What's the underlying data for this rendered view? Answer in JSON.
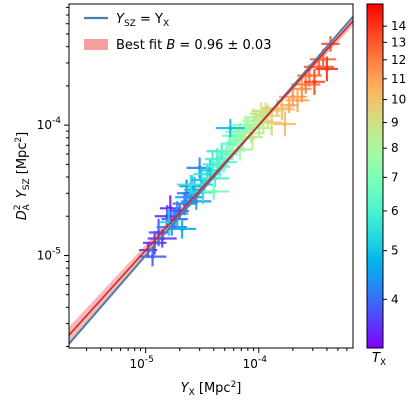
{
  "chart_data": {
    "type": "scatter",
    "xlabel": "Y_X [Mpc^2]",
    "ylabel": "D_A^2 Y_SZ [Mpc^2]",
    "xscale": "log",
    "yscale": "log",
    "xlim": [
      2.1e-06,
      0.00068
    ],
    "ylim": [
      1.95e-06,
      0.00085
    ],
    "x_ticks": [
      {
        "value": 1e-05,
        "label": "10^-5"
      },
      {
        "value": 0.0001,
        "label": "10^-4"
      }
    ],
    "y_ticks": [
      {
        "value": 1e-05,
        "label": "10^-5"
      },
      {
        "value": 0.0001,
        "label": "10^-4"
      }
    ],
    "grid": false,
    "legend_position": "top-left",
    "legend": [
      {
        "label_main": "Y",
        "label_sub1": "SZ",
        "label_mid": " = Y",
        "label_sub2": "X",
        "color": "#4a7fb0",
        "kind": "line"
      },
      {
        "label_text": "Best fit ",
        "label_italic": "B",
        "label_value": " = 0.96 ± 0.03",
        "color": "#f4a0a0",
        "kind": "band"
      }
    ],
    "relations": [
      {
        "name": "Y_SZ = Y_X",
        "slope": 1.0,
        "norm": 1.0,
        "color": "#4a7fb0"
      },
      {
        "name": "Best fit",
        "slope": 0.96,
        "norm": 1.0,
        "color": "#d62728",
        "band_color": "#f4a0a0"
      }
    ],
    "colorbar": {
      "label_main": "T",
      "label_sub": "X",
      "min": 3.2,
      "max": 15.5,
      "scale": "log",
      "colormap": "rainbow",
      "ticks": [
        4,
        5,
        6,
        7,
        8,
        9,
        10,
        11,
        12,
        13,
        14
      ]
    },
    "points": [
      {
        "x": 1.05e-05,
        "y": 1.1e-05,
        "t": 3.6
      },
      {
        "x": 1.15e-05,
        "y": 9.8e-06,
        "t": 3.9
      },
      {
        "x": 1.2e-05,
        "y": 1.25e-05,
        "t": 3.5
      },
      {
        "x": 1.3e-05,
        "y": 1.5e-05,
        "t": 3.7
      },
      {
        "x": 1.4e-05,
        "y": 1.35e-05,
        "t": 3.6
      },
      {
        "x": 1.55e-05,
        "y": 2e-05,
        "t": 3.5
      },
      {
        "x": 1.65e-05,
        "y": 2.3e-05,
        "t": 3.4
      },
      {
        "x": 1.7e-05,
        "y": 1.65e-05,
        "t": 4.2
      },
      {
        "x": 1.8e-05,
        "y": 1.9e-05,
        "t": 3.9
      },
      {
        "x": 1.9e-05,
        "y": 2.1e-05,
        "t": 4.4
      },
      {
        "x": 2e-05,
        "y": 2.2e-05,
        "t": 3.8
      },
      {
        "x": 2.1e-05,
        "y": 1.6e-05,
        "t": 4.7
      },
      {
        "x": 2.2e-05,
        "y": 2.5e-05,
        "t": 4.2
      },
      {
        "x": 2.3e-05,
        "y": 3e-05,
        "t": 4.1
      },
      {
        "x": 2.45e-05,
        "y": 2.8e-05,
        "t": 4.5
      },
      {
        "x": 2.55e-05,
        "y": 3.4e-05,
        "t": 4.3
      },
      {
        "x": 2.7e-05,
        "y": 3.2e-05,
        "t": 4.9
      },
      {
        "x": 2.8e-05,
        "y": 2.6e-05,
        "t": 4.4
      },
      {
        "x": 3e-05,
        "y": 4.7e-05,
        "t": 4.2
      },
      {
        "x": 3.1e-05,
        "y": 3.8e-05,
        "t": 5.0
      },
      {
        "x": 3.3e-05,
        "y": 3.5e-05,
        "t": 5.3
      },
      {
        "x": 3.5e-05,
        "y": 4.2e-05,
        "t": 5.6
      },
      {
        "x": 3.7e-05,
        "y": 4.5e-05,
        "t": 5.1
      },
      {
        "x": 3.9e-05,
        "y": 5e-05,
        "t": 5.8
      },
      {
        "x": 4.1e-05,
        "y": 3.9e-05,
        "t": 5.9
      },
      {
        "x": 4.3e-05,
        "y": 5.5e-05,
        "t": 6.0
      },
      {
        "x": 4.5e-05,
        "y": 4.8e-05,
        "t": 6.2
      },
      {
        "x": 4.7e-05,
        "y": 6.3e-05,
        "t": 5.7
      },
      {
        "x": 4.9e-05,
        "y": 5.2e-05,
        "t": 6.4
      },
      {
        "x": 5.2e-05,
        "y": 6e-05,
        "t": 6.6
      },
      {
        "x": 5.5e-05,
        "y": 7.2e-05,
        "t": 6.5
      },
      {
        "x": 5.8e-05,
        "y": 6.4e-05,
        "t": 6.9
      },
      {
        "x": 6e-05,
        "y": 8.3e-05,
        "t": 6.8
      },
      {
        "x": 6.4e-05,
        "y": 7.6e-05,
        "t": 7.2
      },
      {
        "x": 6.8e-05,
        "y": 8.9e-05,
        "t": 7.0
      },
      {
        "x": 7.2e-05,
        "y": 7.9e-05,
        "t": 7.5
      },
      {
        "x": 7.6e-05,
        "y": 9.4e-05,
        "t": 7.7
      },
      {
        "x": 8e-05,
        "y": 0.0001,
        "t": 7.4
      },
      {
        "x": 8.5e-05,
        "y": 8.7e-05,
        "t": 8.0
      },
      {
        "x": 9e-05,
        "y": 0.000108,
        "t": 7.9
      },
      {
        "x": 9.5e-05,
        "y": 0.000115,
        "t": 8.4
      },
      {
        "x": 0.0001,
        "y": 9.5e-05,
        "t": 8.2
      },
      {
        "x": 0.000105,
        "y": 0.000122,
        "t": 8.7
      },
      {
        "x": 0.00011,
        "y": 0.000108,
        "t": 8.5
      },
      {
        "x": 0.000115,
        "y": 0.000128,
        "t": 9.0
      },
      {
        "x": 0.00012,
        "y": 0.000118,
        "t": 9.3
      },
      {
        "x": 0.00013,
        "y": 0.000105,
        "t": 9.6
      },
      {
        "x": 0.000145,
        "y": 0.000135,
        "t": 9.8
      },
      {
        "x": 0.00016,
        "y": 0.000132,
        "t": 10.1
      },
      {
        "x": 0.00017,
        "y": 0.000102,
        "t": 10.3
      },
      {
        "x": 0.000185,
        "y": 0.000142,
        "t": 10.8
      },
      {
        "x": 0.0002,
        "y": 0.000165,
        "t": 11.2
      },
      {
        "x": 0.00022,
        "y": 0.000155,
        "t": 10.9
      },
      {
        "x": 0.00024,
        "y": 0.00019,
        "t": 11.5
      },
      {
        "x": 0.00026,
        "y": 0.000205,
        "t": 12.0
      },
      {
        "x": 0.00028,
        "y": 0.00024,
        "t": 12.3
      },
      {
        "x": 0.00031,
        "y": 0.000215,
        "t": 13.6
      },
      {
        "x": 0.00034,
        "y": 0.00028,
        "t": 12.8
      },
      {
        "x": 0.00037,
        "y": 0.00032,
        "t": 12.6
      },
      {
        "x": 0.0004,
        "y": 0.00027,
        "t": 14.0
      },
      {
        "x": 0.00043,
        "y": 0.00042,
        "t": 13.1
      },
      {
        "x": 2.5e-05,
        "y": 3.5e-05,
        "t": 5.6
      },
      {
        "x": 3.2e-05,
        "y": 3.05e-05,
        "t": 5.4
      },
      {
        "x": 1.6e-05,
        "y": 1.8e-05,
        "t": 5.2
      },
      {
        "x": 5.6e-05,
        "y": 9.5e-05,
        "t": 4.9
      },
      {
        "x": 6.8e-05,
        "y": 6.5e-05,
        "t": 7.9
      },
      {
        "x": 8.8e-05,
        "y": 8.1e-05,
        "t": 8.9
      },
      {
        "x": 4e-05,
        "y": 3.1e-05,
        "t": 6.8
      }
    ]
  }
}
